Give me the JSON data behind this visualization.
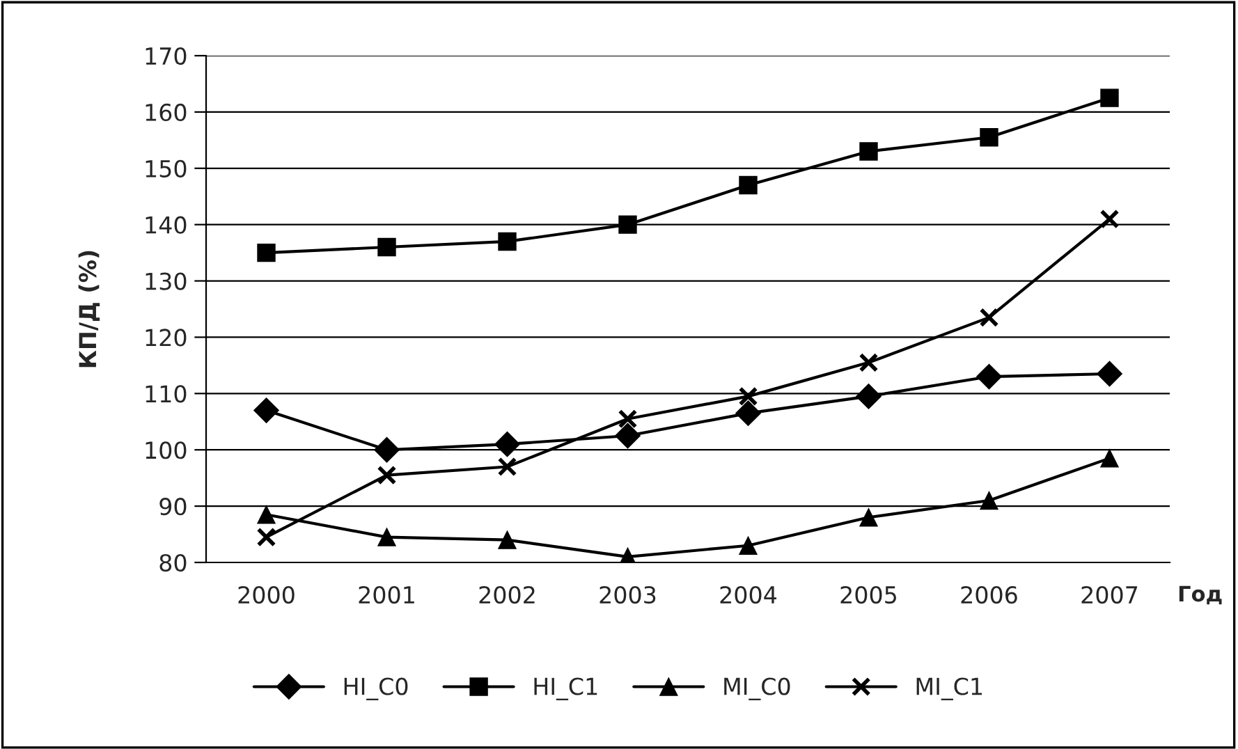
{
  "chart_data": {
    "type": "line",
    "xlabel": "Год",
    "ylabel": "КП/Д (%)",
    "categories": [
      "2000",
      "2001",
      "2002",
      "2003",
      "2004",
      "2005",
      "2006",
      "2007"
    ],
    "series": [
      {
        "name": "HI_C0",
        "color": "#000000",
        "marker": "diamond",
        "values": [
          107,
          100,
          101,
          102.5,
          106.5,
          109.5,
          113,
          113.5
        ]
      },
      {
        "name": "HI_C1",
        "color": "#000000",
        "marker": "square",
        "values": [
          135,
          136,
          137,
          140,
          147,
          153,
          155.5,
          162.5
        ]
      },
      {
        "name": "MI_C0",
        "color": "#000000",
        "marker": "triangle",
        "values": [
          88.5,
          84.5,
          84,
          81,
          83,
          88,
          91,
          98.5
        ]
      },
      {
        "name": "MI_C1",
        "color": "#000000",
        "marker": "cross",
        "values": [
          84.5,
          95.5,
          97,
          105.5,
          109.5,
          115.5,
          123.5,
          141
        ]
      }
    ],
    "ylim": [
      80,
      170
    ],
    "yticks": [
      80,
      90,
      100,
      110,
      120,
      130,
      140,
      150,
      160,
      170
    ],
    "grid": "y",
    "legend": "bottom",
    "line_style": "solid"
  }
}
